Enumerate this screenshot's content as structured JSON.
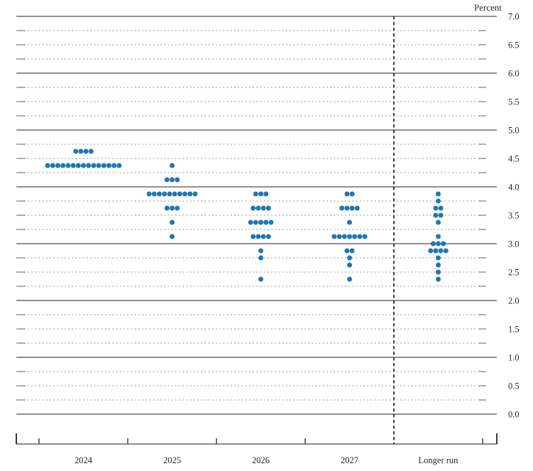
{
  "chart_data": {
    "type": "scatter",
    "subtype": "fomc-dot-plot",
    "title": "",
    "ylabel": "Percent",
    "xlabel": "",
    "ylim": [
      0.0,
      7.0
    ],
    "y_gridline_interval": 0.25,
    "y_gridline_style": "solid at whole percents, dotted at quarter percents",
    "y_label_interval": 0.5,
    "y_axis_labels": [
      "7.0",
      "6.5",
      "6.0",
      "5.5",
      "5.0",
      "4.5",
      "4.0",
      "3.5",
      "3.0",
      "2.5",
      "2.0",
      "1.5",
      "1.0",
      "0.5",
      "0.0"
    ],
    "y_axis_label_side": "right",
    "grid": true,
    "legend_position": "none",
    "categories": [
      "2024",
      "2025",
      "2026",
      "2027",
      "Longer run"
    ],
    "separator": "dashed vertical line between 2027 and Longer run",
    "series": [
      {
        "name": "2024",
        "distribution": [
          {
            "value": 4.625,
            "count": 4
          },
          {
            "value": 4.375,
            "count": 15
          }
        ]
      },
      {
        "name": "2025",
        "distribution": [
          {
            "value": 4.375,
            "count": 1
          },
          {
            "value": 4.125,
            "count": 3
          },
          {
            "value": 3.875,
            "count": 10
          },
          {
            "value": 3.625,
            "count": 3
          },
          {
            "value": 3.375,
            "count": 1
          },
          {
            "value": 3.125,
            "count": 1
          }
        ]
      },
      {
        "name": "2026",
        "distribution": [
          {
            "value": 3.875,
            "count": 3
          },
          {
            "value": 3.625,
            "count": 4
          },
          {
            "value": 3.375,
            "count": 5
          },
          {
            "value": 3.125,
            "count": 4
          },
          {
            "value": 2.875,
            "count": 1
          },
          {
            "value": 2.75,
            "count": 1
          },
          {
            "value": 2.375,
            "count": 1
          }
        ]
      },
      {
        "name": "2027",
        "distribution": [
          {
            "value": 3.875,
            "count": 2
          },
          {
            "value": 3.625,
            "count": 4
          },
          {
            "value": 3.375,
            "count": 1
          },
          {
            "value": 3.125,
            "count": 7
          },
          {
            "value": 2.875,
            "count": 2
          },
          {
            "value": 2.75,
            "count": 1
          },
          {
            "value": 2.625,
            "count": 1
          },
          {
            "value": 2.375,
            "count": 1
          }
        ]
      },
      {
        "name": "Longer run",
        "distribution": [
          {
            "value": 3.875,
            "count": 1
          },
          {
            "value": 3.75,
            "count": 1
          },
          {
            "value": 3.625,
            "count": 2
          },
          {
            "value": 3.5,
            "count": 2
          },
          {
            "value": 3.375,
            "count": 1
          },
          {
            "value": 3.125,
            "count": 1
          },
          {
            "value": 3.0,
            "count": 3
          },
          {
            "value": 2.875,
            "count": 4
          },
          {
            "value": 2.75,
            "count": 1
          },
          {
            "value": 2.625,
            "count": 1
          },
          {
            "value": 2.5,
            "count": 1
          },
          {
            "value": 2.375,
            "count": 1
          }
        ]
      }
    ],
    "colors": {
      "dot": "#1f77b4",
      "solid_gridline": "#4d4d4d",
      "dotted_gridline": "#999999",
      "axis": "#666666",
      "separator": "#111111",
      "text": "#262626"
    }
  }
}
